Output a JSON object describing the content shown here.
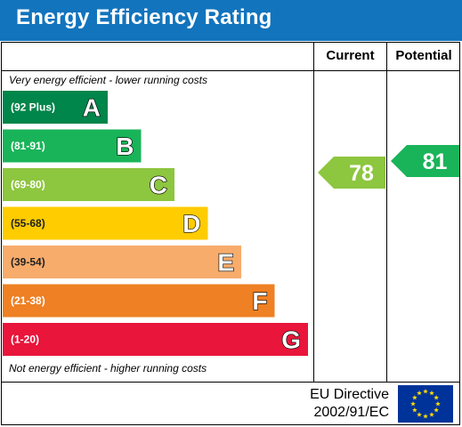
{
  "header": {
    "title": "Energy Efficiency Rating"
  },
  "columns": {
    "current": "Current",
    "potential": "Potential"
  },
  "notes": {
    "top": "Very energy efficient - lower running costs",
    "bottom": "Not energy efficient - higher running costs"
  },
  "footer": {
    "directive_line1": "EU Directive",
    "directive_line2": "2002/91/EC"
  },
  "chart_data": {
    "type": "bar",
    "title": "Energy Efficiency Rating",
    "categories": [
      "A",
      "B",
      "C",
      "D",
      "E",
      "F",
      "G"
    ],
    "bands": [
      {
        "letter": "A",
        "range": "(92 Plus)",
        "color": "#00854a"
      },
      {
        "letter": "B",
        "range": "(81-91)",
        "color": "#19b459"
      },
      {
        "letter": "C",
        "range": "(69-80)",
        "color": "#8dc63f"
      },
      {
        "letter": "D",
        "range": "(55-68)",
        "color": "#ffcc00"
      },
      {
        "letter": "E",
        "range": "(39-54)",
        "color": "#f7ac6c"
      },
      {
        "letter": "F",
        "range": "(21-38)",
        "color": "#ef8023"
      },
      {
        "letter": "G",
        "range": "(1-20)",
        "color": "#e9153b"
      }
    ],
    "current": {
      "value": 78,
      "band": "C",
      "color": "#8dc63f"
    },
    "potential": {
      "value": 81,
      "band": "B",
      "color": "#19b459"
    }
  }
}
